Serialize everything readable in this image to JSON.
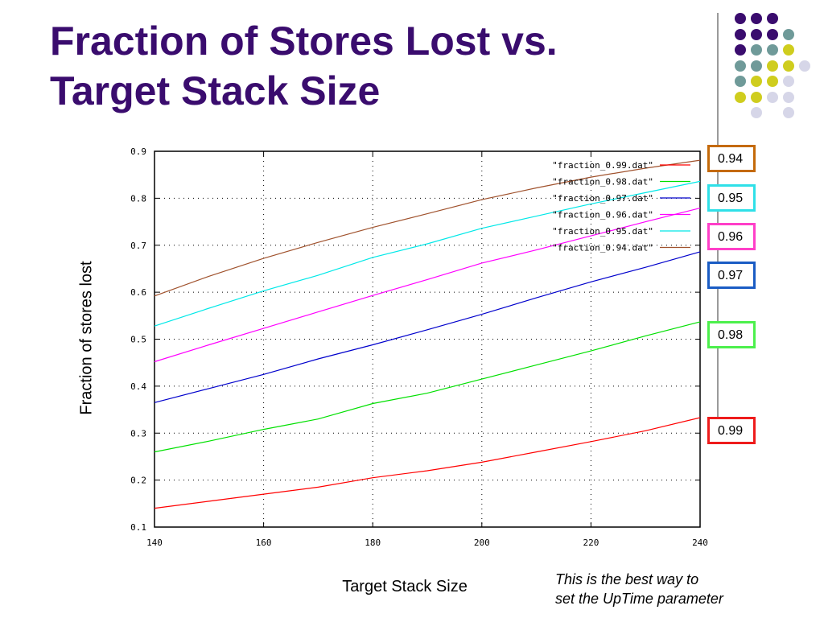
{
  "slide": {
    "title_line1": "Fraction of Stores Lost vs.",
    "title_line2": "Target Stack Size",
    "note_line1": "This is the best way to",
    "note_line2": "set the UpTime parameter"
  },
  "decor_dot_colors": {
    "purple": "#3a0c6e",
    "teal": "#6f9a99",
    "olive": "#cfcd1e",
    "lavender": "#d6d6e8"
  },
  "chart_data": {
    "type": "line",
    "title": "",
    "xlabel": "Target Stack Size",
    "ylabel": "Fraction of stores lost",
    "xlim": [
      140,
      240
    ],
    "ylim": [
      0.1,
      0.9
    ],
    "x_ticks": [
      "140",
      "160",
      "180",
      "200",
      "220",
      "240"
    ],
    "y_ticks": [
      "0.1",
      "0.2",
      "0.3",
      "0.4",
      "0.5",
      "0.6",
      "0.7",
      "0.8",
      "0.9"
    ],
    "grid": true,
    "legend_position": "top-right",
    "x": [
      140,
      150,
      160,
      170,
      180,
      190,
      200,
      210,
      220,
      230,
      240
    ],
    "series": [
      {
        "name": "\"fraction_0.99.dat\"",
        "color": "#ff0000",
        "values": [
          0.14,
          0.155,
          0.17,
          0.185,
          0.205,
          0.22,
          0.238,
          0.26,
          0.282,
          0.305,
          0.333
        ]
      },
      {
        "name": "\"fraction_0.98.dat\"",
        "color": "#00e000",
        "values": [
          0.26,
          0.283,
          0.308,
          0.33,
          0.363,
          0.385,
          0.415,
          0.445,
          0.475,
          0.507,
          0.537
        ]
      },
      {
        "name": "\"fraction_0.97.dat\"",
        "color": "#0000cc",
        "values": [
          0.365,
          0.395,
          0.425,
          0.458,
          0.488,
          0.52,
          0.553,
          0.588,
          0.622,
          0.653,
          0.686
        ]
      },
      {
        "name": "\"fraction_0.96.dat\"",
        "color": "#ff00ff",
        "values": [
          0.452,
          0.488,
          0.523,
          0.558,
          0.593,
          0.627,
          0.662,
          0.69,
          0.72,
          0.75,
          0.779
        ]
      },
      {
        "name": "\"fraction_0.95.dat\"",
        "color": "#00e8e8",
        "values": [
          0.528,
          0.566,
          0.603,
          0.636,
          0.674,
          0.703,
          0.736,
          0.762,
          0.788,
          0.812,
          0.836
        ]
      },
      {
        "name": "\"fraction_0.94.dat\"",
        "color": "#a0522d",
        "values": [
          0.592,
          0.634,
          0.672,
          0.706,
          0.738,
          0.767,
          0.797,
          0.822,
          0.845,
          0.864,
          0.881
        ]
      }
    ],
    "annotations": [
      {
        "label": "0.94",
        "border_color": "#c46a0a",
        "y": 0.885
      },
      {
        "label": "0.95",
        "border_color": "#2fe0e8",
        "y": 0.8
      },
      {
        "label": "0.96",
        "border_color": "#ff3fc8",
        "y": 0.719
      },
      {
        "label": "0.97",
        "border_color": "#1a5cc4",
        "y": 0.637
      },
      {
        "label": "0.98",
        "border_color": "#4cf04c",
        "y": 0.509
      },
      {
        "label": "0.99",
        "border_color": "#ee1c1c",
        "y": 0.305
      }
    ]
  }
}
